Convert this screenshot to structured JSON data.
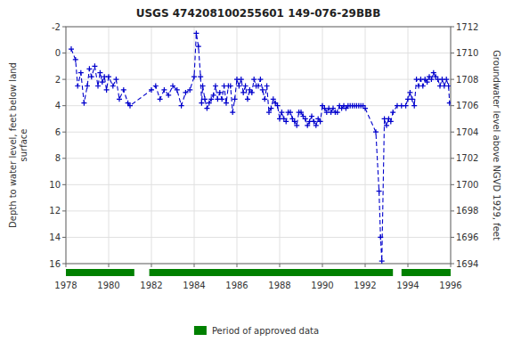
{
  "chart_data": {
    "type": "line",
    "title": "USGS 474208100255601 149-076-29BBB",
    "y_label": "Depth to water level, feet below land\nsurface",
    "y2_label": "Groundwater level above NGVD 1929, feet",
    "xlim": [
      1978,
      1996
    ],
    "xticks": [
      1978,
      1980,
      1982,
      1984,
      1986,
      1988,
      1990,
      1992,
      1994,
      1996
    ],
    "ylim": [
      16,
      -2
    ],
    "yticks": [
      -2,
      0,
      2,
      4,
      6,
      8,
      10,
      12,
      14,
      16
    ],
    "y2lim": [
      1694,
      1712
    ],
    "y2ticks": [
      1694,
      1696,
      1698,
      1700,
      1702,
      1704,
      1706,
      1708,
      1710,
      1712
    ],
    "grid": true,
    "legend": "bottom",
    "color": "#0000cc",
    "line_style": "dashed",
    "marker": "plus",
    "periods": {
      "name": "Period of approved data",
      "color": "#008000",
      "values": [
        [
          1978.0,
          1981.2
        ],
        [
          1981.9,
          1993.3
        ],
        [
          1993.7,
          1996.0
        ]
      ]
    },
    "x": [
      1978.25,
      1978.45,
      1978.55,
      1978.7,
      1978.85,
      1979.0,
      1979.1,
      1979.2,
      1979.35,
      1979.5,
      1979.6,
      1979.7,
      1979.8,
      1979.9,
      1980.0,
      1980.2,
      1980.35,
      1980.5,
      1980.7,
      1980.9,
      1981.0,
      1982.0,
      1982.2,
      1982.4,
      1982.6,
      1982.8,
      1983.0,
      1983.2,
      1983.4,
      1983.6,
      1983.8,
      1984.0,
      1984.1,
      1984.2,
      1984.3,
      1984.35,
      1984.4,
      1984.5,
      1984.6,
      1984.7,
      1984.8,
      1984.9,
      1985.0,
      1985.1,
      1985.2,
      1985.3,
      1985.4,
      1985.5,
      1985.6,
      1985.7,
      1985.8,
      1985.9,
      1986.0,
      1986.1,
      1986.2,
      1986.3,
      1986.4,
      1986.5,
      1986.6,
      1986.7,
      1986.8,
      1986.9,
      1987.0,
      1987.1,
      1987.2,
      1987.3,
      1987.4,
      1987.5,
      1987.6,
      1987.7,
      1987.8,
      1987.9,
      1988.0,
      1988.1,
      1988.2,
      1988.3,
      1988.4,
      1988.5,
      1988.6,
      1988.7,
      1988.8,
      1988.9,
      1989.0,
      1989.1,
      1989.2,
      1989.3,
      1989.4,
      1989.5,
      1989.6,
      1989.7,
      1989.8,
      1989.9,
      1990.0,
      1990.1,
      1990.2,
      1990.3,
      1990.4,
      1990.5,
      1990.6,
      1990.7,
      1990.8,
      1990.9,
      1991.0,
      1991.1,
      1991.2,
      1991.3,
      1991.4,
      1991.5,
      1991.6,
      1991.7,
      1991.8,
      1991.9,
      1992.0,
      1992.5,
      1992.65,
      1992.72,
      1992.78,
      1992.9,
      1993.0,
      1993.1,
      1993.2,
      1993.3,
      1993.5,
      1993.7,
      1993.9,
      1994.0,
      1994.1,
      1994.2,
      1994.3,
      1994.4,
      1994.5,
      1994.6,
      1994.7,
      1994.8,
      1994.9,
      1995.0,
      1995.1,
      1995.2,
      1995.3,
      1995.4,
      1995.5,
      1995.6,
      1995.7,
      1995.8,
      1995.9,
      1995.95
    ],
    "values": [
      -0.3,
      0.5,
      2.5,
      1.5,
      3.8,
      2.5,
      1.2,
      1.8,
      1.0,
      2.5,
      1.5,
      2.2,
      1.8,
      2.8,
      1.8,
      2.5,
      2.0,
      3.5,
      2.8,
      3.8,
      4.0,
      2.8,
      2.5,
      3.5,
      2.8,
      3.2,
      2.5,
      2.8,
      4.0,
      3.0,
      2.8,
      1.8,
      -1.5,
      -0.5,
      1.8,
      3.8,
      2.5,
      3.5,
      4.2,
      3.8,
      3.5,
      3.2,
      2.5,
      3.5,
      3.0,
      3.5,
      2.5,
      3.8,
      2.5,
      2.5,
      4.5,
      3.5,
      2.0,
      2.5,
      2.0,
      3.0,
      2.5,
      3.5,
      2.8,
      3.0,
      2.0,
      2.5,
      2.5,
      2.0,
      2.8,
      3.5,
      2.5,
      4.5,
      4.2,
      3.5,
      3.8,
      4.0,
      5.0,
      4.5,
      5.0,
      5.2,
      4.5,
      4.5,
      5.0,
      5.2,
      5.5,
      4.5,
      4.5,
      4.8,
      5.0,
      5.5,
      5.2,
      4.8,
      5.2,
      5.5,
      5.0,
      5.2,
      4.0,
      4.2,
      4.5,
      4.2,
      4.5,
      4.2,
      4.5,
      4.5,
      4.0,
      4.2,
      4.0,
      4.2,
      4.0,
      4.0,
      4.0,
      4.0,
      4.0,
      4.0,
      4.0,
      4.0,
      4.2,
      6.0,
      10.5,
      14.0,
      15.8,
      5.0,
      5.5,
      5.0,
      5.2,
      4.5,
      4.0,
      4.0,
      4.0,
      3.5,
      3.0,
      3.5,
      4.0,
      2.0,
      2.5,
      2.0,
      2.5,
      2.0,
      2.2,
      1.8,
      2.0,
      1.5,
      1.8,
      2.0,
      2.5,
      2.0,
      2.5,
      2.0,
      2.5,
      3.8
    ]
  }
}
